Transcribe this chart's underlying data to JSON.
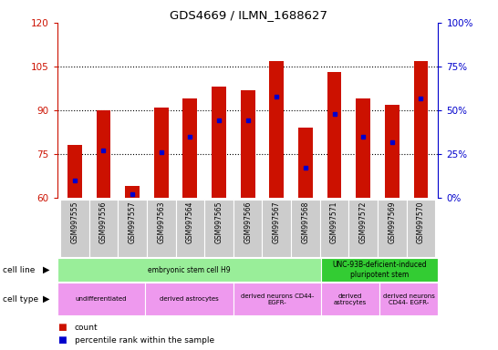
{
  "title": "GDS4669 / ILMN_1688627",
  "samples": [
    "GSM997555",
    "GSM997556",
    "GSM997557",
    "GSM997563",
    "GSM997564",
    "GSM997565",
    "GSM997566",
    "GSM997567",
    "GSM997568",
    "GSM997571",
    "GSM997572",
    "GSM997569",
    "GSM997570"
  ],
  "count_values": [
    78,
    90,
    64,
    91,
    94,
    98,
    97,
    107,
    84,
    103,
    94,
    92,
    107
  ],
  "percentile_values": [
    10,
    27,
    2,
    26,
    35,
    44,
    44,
    58,
    17,
    48,
    35,
    32,
    57
  ],
  "ylim_left": [
    60,
    120
  ],
  "ylim_right": [
    0,
    100
  ],
  "yticks_left": [
    60,
    75,
    90,
    105,
    120
  ],
  "yticks_right": [
    0,
    25,
    50,
    75,
    100
  ],
  "bar_color": "#cc1100",
  "marker_color": "#0000cc",
  "cell_line_groups": [
    {
      "label": "embryonic stem cell H9",
      "start": 0,
      "end": 9,
      "color": "#99ee99"
    },
    {
      "label": "UNC-93B-deficient-induced\npluripotent stem",
      "start": 9,
      "end": 13,
      "color": "#33cc33"
    }
  ],
  "cell_type_groups": [
    {
      "label": "undifferentiated",
      "start": 0,
      "end": 3,
      "color": "#ee99ee"
    },
    {
      "label": "derived astrocytes",
      "start": 3,
      "end": 6,
      "color": "#ee99ee"
    },
    {
      "label": "derived neurons CD44-\nEGFR-",
      "start": 6,
      "end": 9,
      "color": "#ee99ee"
    },
    {
      "label": "derived\nastrocytes",
      "start": 9,
      "end": 11,
      "color": "#ee99ee"
    },
    {
      "label": "derived neurons\nCD44- EGFR-",
      "start": 11,
      "end": 13,
      "color": "#ee99ee"
    }
  ],
  "left_axis_color": "#cc1100",
  "right_axis_color": "#0000cc",
  "legend_count_color": "#cc1100",
  "legend_pct_color": "#0000cc",
  "sample_bg_color": "#cccccc"
}
